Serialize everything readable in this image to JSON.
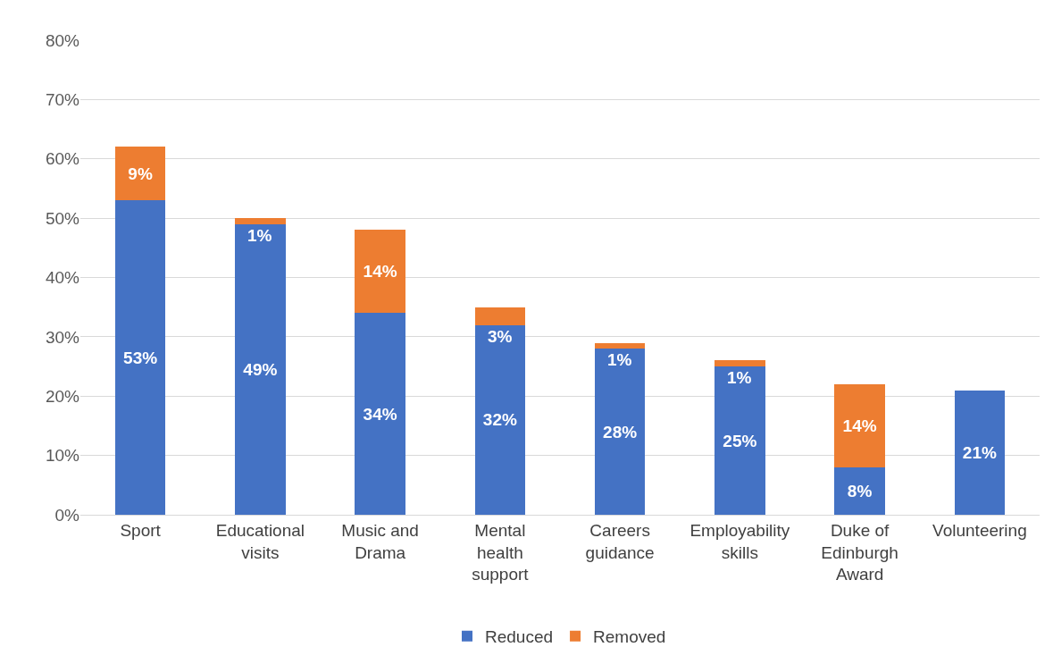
{
  "chart_data": {
    "type": "bar",
    "stacked": true,
    "categories": [
      "Sport",
      "Educational visits",
      "Music and Drama",
      "Mental health support",
      "Careers guidance",
      "Employability skills",
      "Duke of Edinburgh Award",
      "Volunteering"
    ],
    "series": [
      {
        "name": "Reduced",
        "color": "#4472c4",
        "values": [
          53,
          49,
          34,
          32,
          28,
          25,
          8,
          21
        ],
        "value_labels": [
          "53%",
          "49%",
          "34%",
          "32%",
          "28%",
          "25%",
          "8%",
          "21%"
        ]
      },
      {
        "name": "Removed",
        "color": "#ed7d31",
        "values": [
          9,
          1,
          14,
          3,
          1,
          1,
          14,
          null
        ],
        "value_labels": [
          "9%",
          "1%",
          "14%",
          "3%",
          "1%",
          "1%",
          "14%",
          null
        ]
      }
    ],
    "ylim": [
      0,
      80
    ],
    "yticks": [
      {
        "value": 0,
        "label": "0%"
      },
      {
        "value": 10,
        "label": "10%"
      },
      {
        "value": 20,
        "label": "20%"
      },
      {
        "value": 30,
        "label": "30%"
      },
      {
        "value": 40,
        "label": "40%"
      },
      {
        "value": 50,
        "label": "50%"
      },
      {
        "value": 60,
        "label": "60%"
      },
      {
        "value": 70,
        "label": "70%"
      },
      {
        "value": 80,
        "label": "80%"
      }
    ],
    "grid": "y",
    "legend": "bottom"
  }
}
